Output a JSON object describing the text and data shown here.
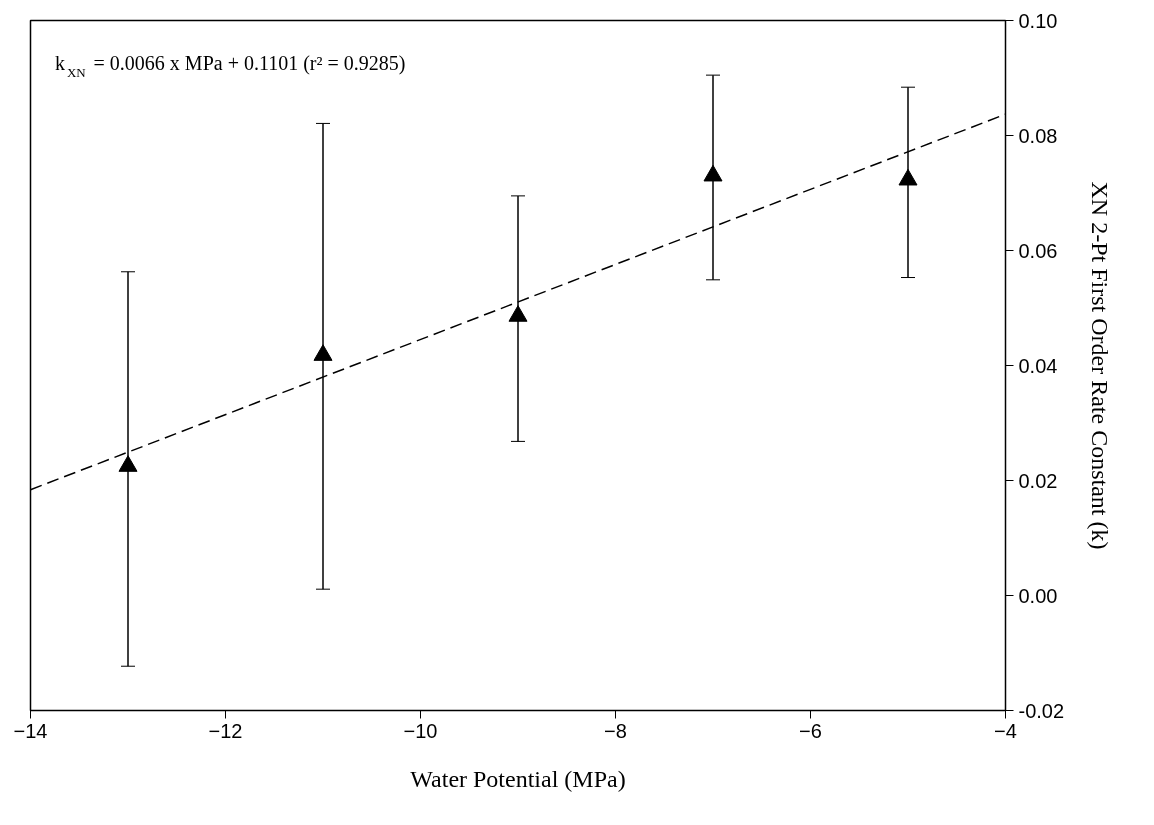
{
  "chart_data": {
    "type": "scatter",
    "xlabel": "Water Potential (MPa)",
    "ylabel": "XN 2-Pt First Order Rate Constant (k)",
    "x": [
      -13,
      -11,
      -9,
      -7,
      -5
    ],
    "series": [
      {
        "color": "#000000",
        "marker": "triangle",
        "values": [
          0.0225,
          0.0418,
          0.0486,
          0.073,
          0.0723
        ],
        "errors": [
          [
            -0.0123,
            0.0563
          ],
          [
            0.0011,
            0.0821
          ],
          [
            0.0268,
            0.0695
          ],
          [
            0.0549,
            0.0905
          ],
          [
            0.0553,
            0.0884
          ]
        ]
      },
      {
        "type": "line",
        "color": "#000000",
        "line_style": "dashed",
        "marker": "none",
        "x": [
          -14,
          -4
        ],
        "values": [
          0.0184,
          0.0837
        ]
      }
    ],
    "xlim": [
      -14,
      -4
    ],
    "xticks": [
      -14,
      -12,
      -10,
      -8,
      -6,
      -4
    ],
    "ylim": [
      -0.02,
      0.1
    ],
    "yticks": [
      {
        "value": -0.02,
        "label": "-0.02"
      },
      {
        "value": 0,
        "label": "0.00"
      },
      {
        "value": 0.02,
        "label": "0.02"
      },
      {
        "value": 0.04,
        "label": "0.04"
      },
      {
        "value": 0.06,
        "label": "0.06"
      },
      {
        "value": 0.08,
        "label": "0.08"
      },
      {
        "value": 0.1,
        "label": "0.10"
      }
    ],
    "grid": false,
    "annotations": [
      "k$_{XN}$ = 0.0066 x  MPa + 0.1101 (r² = 0.9285)"
    ]
  }
}
